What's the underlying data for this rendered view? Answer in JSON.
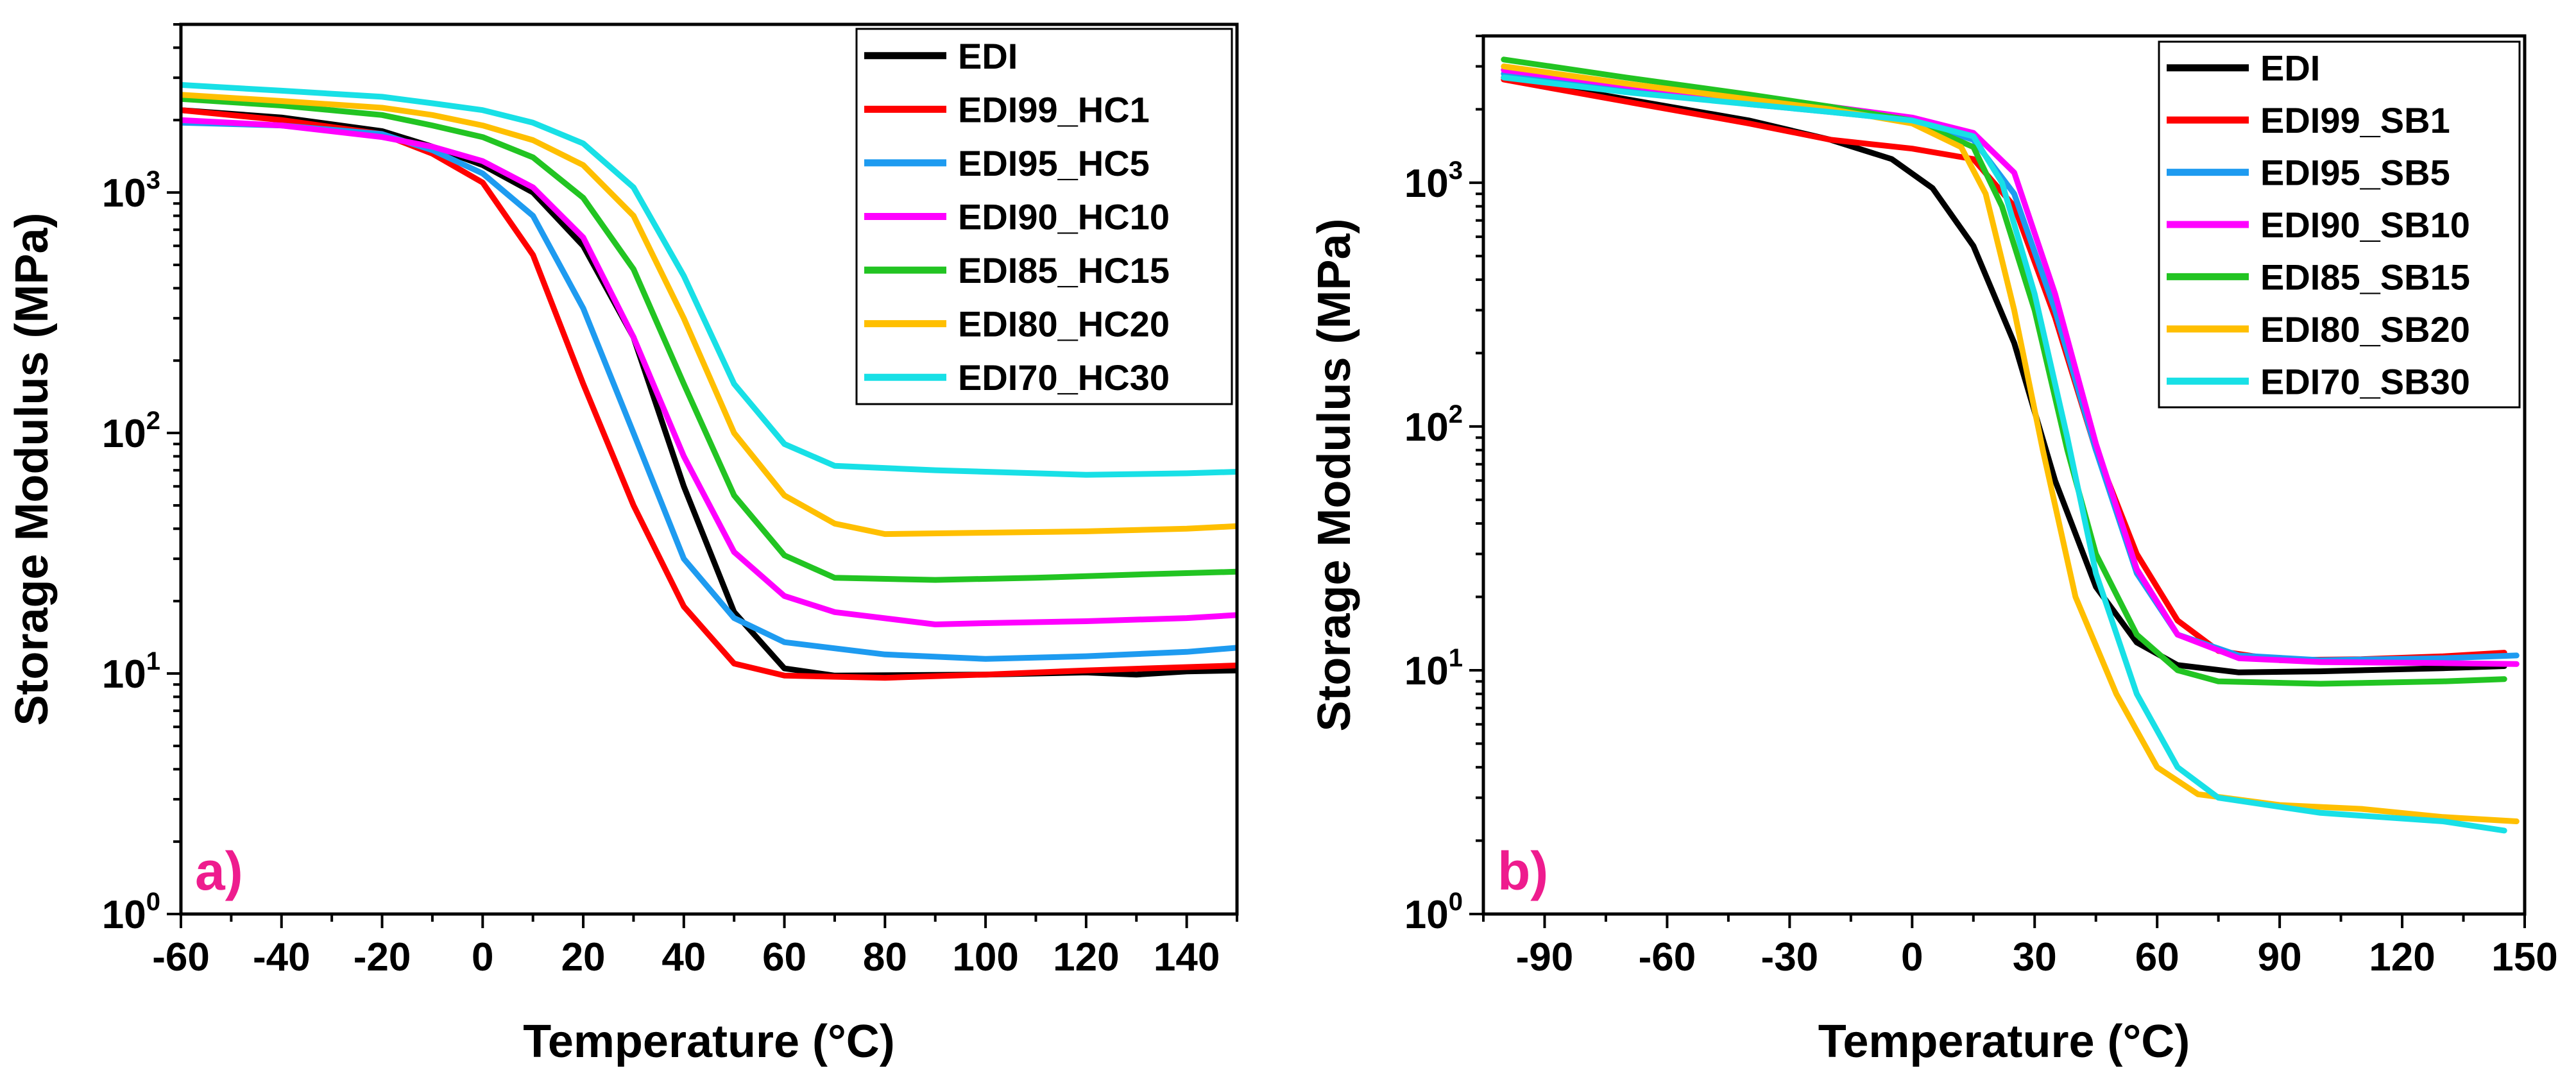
{
  "chart_data": [
    {
      "panel": "a",
      "panel_label": "a)",
      "panel_label_color": "#ee1c8e",
      "type": "line",
      "yscale": "log",
      "xlabel": "Temperature (°C)",
      "ylabel": "Storage Modulus (MPa)",
      "xlim": [
        -60,
        150
      ],
      "ylim": [
        1,
        5000
      ],
      "xticks": [
        -60,
        -40,
        -20,
        0,
        20,
        40,
        60,
        80,
        100,
        120,
        140
      ],
      "xtick_labels": [
        "-60",
        "-40",
        "-20",
        "0",
        "20",
        "40",
        "60",
        "80",
        "100",
        "120",
        "140"
      ],
      "yticks": [
        1,
        10,
        100,
        1000
      ],
      "ytick_labels": [
        {
          "base": "10",
          "exp": "0"
        },
        {
          "base": "10",
          "exp": "1"
        },
        {
          "base": "10",
          "exp": "2"
        },
        {
          "base": "10",
          "exp": "3"
        }
      ],
      "legend_position": "top-right",
      "series": [
        {
          "name": "EDI",
          "color": "#000000",
          "points": [
            [
              -60,
              2200
            ],
            [
              -40,
              2050
            ],
            [
              -20,
              1800
            ],
            [
              -10,
              1550
            ],
            [
              0,
              1300
            ],
            [
              10,
              1000
            ],
            [
              20,
              600
            ],
            [
              30,
              250
            ],
            [
              40,
              60
            ],
            [
              50,
              18
            ],
            [
              60,
              10.5
            ],
            [
              70,
              9.8
            ],
            [
              100,
              9.9
            ],
            [
              120,
              10.1
            ],
            [
              130,
              9.9
            ],
            [
              140,
              10.2
            ],
            [
              150,
              10.3
            ]
          ]
        },
        {
          "name": "EDI99_HC1",
          "color": "#ff0000",
          "points": [
            [
              -60,
              2200
            ],
            [
              -40,
              2000
            ],
            [
              -20,
              1750
            ],
            [
              -10,
              1450
            ],
            [
              0,
              1100
            ],
            [
              10,
              550
            ],
            [
              20,
              160
            ],
            [
              30,
              50
            ],
            [
              40,
              19
            ],
            [
              50,
              11
            ],
            [
              60,
              9.8
            ],
            [
              80,
              9.6
            ],
            [
              100,
              9.9
            ],
            [
              120,
              10.3
            ],
            [
              150,
              10.8
            ]
          ]
        },
        {
          "name": "EDI95_HC5",
          "color": "#1e9bf0",
          "points": [
            [
              -60,
              1950
            ],
            [
              -40,
              1900
            ],
            [
              -20,
              1750
            ],
            [
              -10,
              1500
            ],
            [
              0,
              1200
            ],
            [
              10,
              800
            ],
            [
              20,
              330
            ],
            [
              30,
              100
            ],
            [
              40,
              30
            ],
            [
              50,
              17
            ],
            [
              60,
              13.5
            ],
            [
              80,
              12
            ],
            [
              100,
              11.5
            ],
            [
              120,
              11.8
            ],
            [
              140,
              12.3
            ],
            [
              150,
              12.8
            ]
          ]
        },
        {
          "name": "EDI90_HC10",
          "color": "#ff00ff",
          "points": [
            [
              -60,
              2000
            ],
            [
              -40,
              1900
            ],
            [
              -20,
              1700
            ],
            [
              -10,
              1550
            ],
            [
              0,
              1350
            ],
            [
              10,
              1050
            ],
            [
              20,
              650
            ],
            [
              30,
              250
            ],
            [
              40,
              80
            ],
            [
              50,
              32
            ],
            [
              60,
              21
            ],
            [
              70,
              18
            ],
            [
              90,
              16
            ],
            [
              100,
              16.2
            ],
            [
              120,
              16.5
            ],
            [
              140,
              17
            ],
            [
              150,
              17.5
            ]
          ]
        },
        {
          "name": "EDI85_HC15",
          "color": "#22c422",
          "points": [
            [
              -60,
              2450
            ],
            [
              -40,
              2300
            ],
            [
              -20,
              2100
            ],
            [
              -10,
              1900
            ],
            [
              0,
              1700
            ],
            [
              10,
              1400
            ],
            [
              20,
              950
            ],
            [
              30,
              480
            ],
            [
              40,
              160
            ],
            [
              50,
              55
            ],
            [
              60,
              31
            ],
            [
              70,
              25
            ],
            [
              90,
              24.5
            ],
            [
              110,
              25
            ],
            [
              130,
              25.8
            ],
            [
              150,
              26.5
            ]
          ]
        },
        {
          "name": "EDI80_HC20",
          "color": "#ffbf00",
          "points": [
            [
              -60,
              2550
            ],
            [
              -40,
              2400
            ],
            [
              -20,
              2250
            ],
            [
              -10,
              2100
            ],
            [
              0,
              1900
            ],
            [
              10,
              1650
            ],
            [
              20,
              1300
            ],
            [
              30,
              800
            ],
            [
              40,
              300
            ],
            [
              50,
              100
            ],
            [
              60,
              55
            ],
            [
              70,
              42
            ],
            [
              80,
              38
            ],
            [
              100,
              38.5
            ],
            [
              120,
              39
            ],
            [
              140,
              40
            ],
            [
              150,
              41
            ]
          ]
        },
        {
          "name": "EDI70_HC30",
          "color": "#18e0e6",
          "points": [
            [
              -60,
              2800
            ],
            [
              -40,
              2650
            ],
            [
              -20,
              2500
            ],
            [
              -10,
              2350
            ],
            [
              0,
              2200
            ],
            [
              10,
              1950
            ],
            [
              20,
              1600
            ],
            [
              30,
              1050
            ],
            [
              40,
              450
            ],
            [
              50,
              160
            ],
            [
              60,
              90
            ],
            [
              70,
              73
            ],
            [
              90,
              70
            ],
            [
              120,
              67
            ],
            [
              140,
              68
            ],
            [
              150,
              69
            ]
          ]
        }
      ]
    },
    {
      "panel": "b",
      "panel_label": "b)",
      "panel_label_color": "#ee1c8e",
      "type": "line",
      "yscale": "log",
      "xlabel": "Temperature (°C)",
      "ylabel": "Storage Modulus (MPa)",
      "xlim": [
        -105,
        150
      ],
      "ylim": [
        1,
        4000
      ],
      "xticks": [
        -90,
        -60,
        -30,
        0,
        30,
        60,
        90,
        120,
        150
      ],
      "xtick_labels": [
        "-90",
        "-60",
        "-30",
        "0",
        "30",
        "60",
        "90",
        "120",
        "150"
      ],
      "yticks": [
        1,
        10,
        100,
        1000
      ],
      "ytick_labels": [
        {
          "base": "10",
          "exp": "0"
        },
        {
          "base": "10",
          "exp": "1"
        },
        {
          "base": "10",
          "exp": "2"
        },
        {
          "base": "10",
          "exp": "3"
        }
      ],
      "legend_position": "top-right",
      "series": [
        {
          "name": "EDI",
          "color": "#000000",
          "points": [
            [
              -100,
              2700
            ],
            [
              -70,
              2200
            ],
            [
              -40,
              1800
            ],
            [
              -20,
              1500
            ],
            [
              -5,
              1250
            ],
            [
              5,
              950
            ],
            [
              15,
              550
            ],
            [
              25,
              220
            ],
            [
              35,
              60
            ],
            [
              45,
              22
            ],
            [
              55,
              13
            ],
            [
              65,
              10.5
            ],
            [
              80,
              9.8
            ],
            [
              100,
              9.9
            ],
            [
              130,
              10.2
            ],
            [
              145,
              10.4
            ]
          ]
        },
        {
          "name": "EDI99_SB1",
          "color": "#ff0000",
          "points": [
            [
              -100,
              2650
            ],
            [
              -70,
              2150
            ],
            [
              -40,
              1750
            ],
            [
              -20,
              1500
            ],
            [
              0,
              1380
            ],
            [
              15,
              1250
            ],
            [
              25,
              800
            ],
            [
              35,
              280
            ],
            [
              45,
              80
            ],
            [
              55,
              30
            ],
            [
              65,
              16
            ],
            [
              75,
              12
            ],
            [
              90,
              11
            ],
            [
              110,
              11.1
            ],
            [
              130,
              11.4
            ],
            [
              145,
              11.8
            ]
          ]
        },
        {
          "name": "EDI95_SB5",
          "color": "#1e9bf0",
          "points": [
            [
              -100,
              2800
            ],
            [
              -70,
              2400
            ],
            [
              -40,
              2100
            ],
            [
              -20,
              1950
            ],
            [
              0,
              1800
            ],
            [
              15,
              1500
            ],
            [
              25,
              900
            ],
            [
              35,
              300
            ],
            [
              45,
              80
            ],
            [
              55,
              25
            ],
            [
              65,
              14
            ],
            [
              80,
              11.5
            ],
            [
              100,
              11
            ],
            [
              130,
              11.2
            ],
            [
              148,
              11.5
            ]
          ]
        },
        {
          "name": "EDI90_SB10",
          "color": "#ff00ff",
          "points": [
            [
              -100,
              2900
            ],
            [
              -70,
              2500
            ],
            [
              -40,
              2200
            ],
            [
              -20,
              2050
            ],
            [
              0,
              1850
            ],
            [
              15,
              1600
            ],
            [
              25,
              1100
            ],
            [
              35,
              350
            ],
            [
              45,
              85
            ],
            [
              55,
              26
            ],
            [
              65,
              14
            ],
            [
              80,
              11.2
            ],
            [
              100,
              10.8
            ],
            [
              130,
              10.7
            ],
            [
              148,
              10.6
            ]
          ]
        },
        {
          "name": "EDI85_SB15",
          "color": "#22c422",
          "points": [
            [
              -100,
              3200
            ],
            [
              -70,
              2700
            ],
            [
              -40,
              2300
            ],
            [
              -20,
              2050
            ],
            [
              0,
              1800
            ],
            [
              15,
              1400
            ],
            [
              22,
              800
            ],
            [
              30,
              300
            ],
            [
              38,
              80
            ],
            [
              45,
              30
            ],
            [
              55,
              14
            ],
            [
              65,
              10
            ],
            [
              75,
              9
            ],
            [
              100,
              8.8
            ],
            [
              130,
              9
            ],
            [
              145,
              9.2
            ]
          ]
        },
        {
          "name": "EDI80_SB20",
          "color": "#ffbf00",
          "points": [
            [
              -100,
              3000
            ],
            [
              -70,
              2550
            ],
            [
              -40,
              2200
            ],
            [
              -20,
              2000
            ],
            [
              0,
              1750
            ],
            [
              12,
              1400
            ],
            [
              18,
              900
            ],
            [
              25,
              300
            ],
            [
              32,
              80
            ],
            [
              40,
              20
            ],
            [
              50,
              8
            ],
            [
              60,
              4
            ],
            [
              70,
              3.1
            ],
            [
              90,
              2.8
            ],
            [
              110,
              2.7
            ],
            [
              130,
              2.5
            ],
            [
              148,
              2.4
            ]
          ]
        },
        {
          "name": "EDI70_SB30",
          "color": "#18e0e6",
          "points": [
            [
              -100,
              2700
            ],
            [
              -70,
              2350
            ],
            [
              -40,
              2100
            ],
            [
              -20,
              1950
            ],
            [
              0,
              1800
            ],
            [
              15,
              1550
            ],
            [
              22,
              1000
            ],
            [
              30,
              350
            ],
            [
              38,
              90
            ],
            [
              45,
              25
            ],
            [
              55,
              8
            ],
            [
              65,
              4
            ],
            [
              75,
              3
            ],
            [
              100,
              2.6
            ],
            [
              130,
              2.4
            ],
            [
              145,
              2.2
            ]
          ]
        }
      ]
    }
  ]
}
